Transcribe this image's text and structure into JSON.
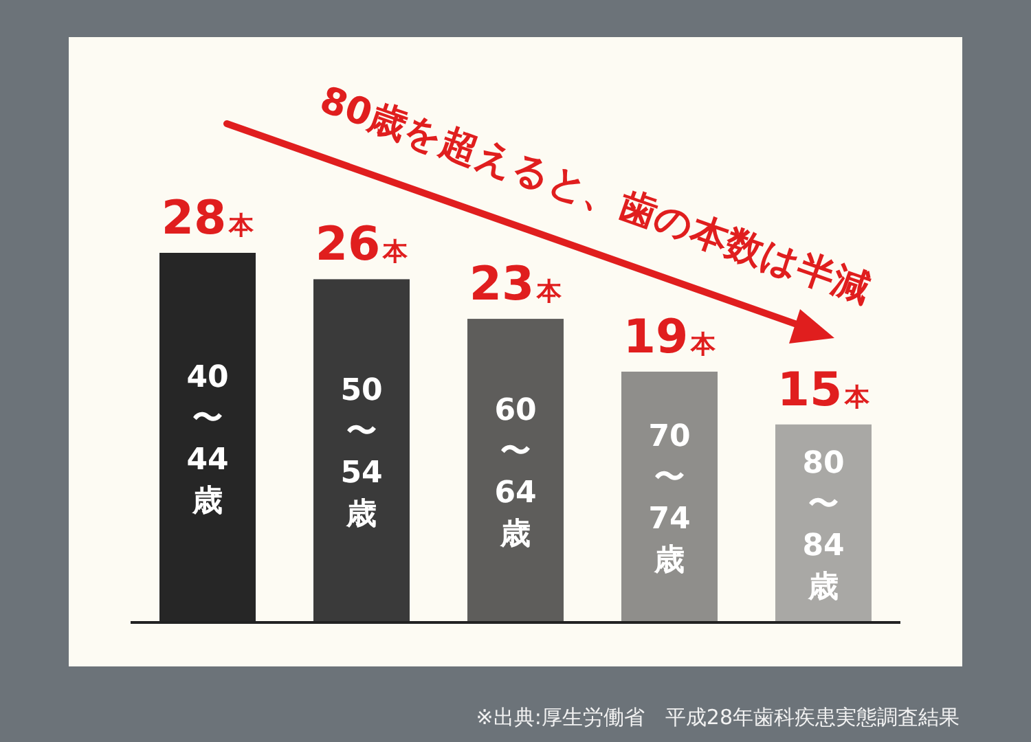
{
  "chart_data": {
    "type": "bar",
    "categories": [
      "40〜44歳",
      "50〜54歳",
      "60〜64歳",
      "70〜74歳",
      "80〜84歳"
    ],
    "values": [
      28,
      26,
      23,
      19,
      15
    ],
    "value_labels": [
      "28本",
      "26本",
      "23本",
      "19本",
      "15本"
    ],
    "colors": [
      "#262626",
      "#3a3a3a",
      "#5e5d5b",
      "#8f8e8b",
      "#a9a8a5"
    ],
    "annotations": [
      "80歳を超えると、歯の本数は半減",
      "※出典:厚生労働省　平成28年歯科疾患実態調査結果"
    ]
  }
}
